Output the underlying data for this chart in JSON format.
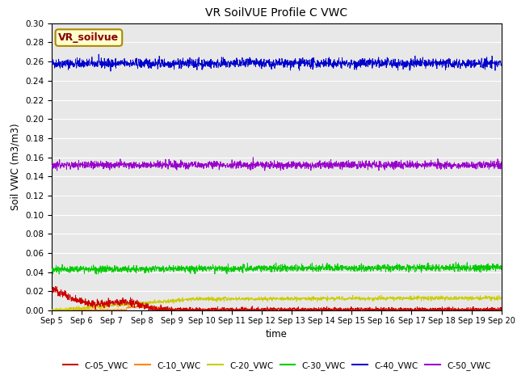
{
  "title": "VR SoilVUE Profile C VWC",
  "xlabel": "time",
  "ylabel": "Soil VWC (m3/m3)",
  "ylim": [
    0.0,
    0.3
  ],
  "yticks": [
    0.0,
    0.02,
    0.04,
    0.06,
    0.08,
    0.1,
    0.12,
    0.14,
    0.16,
    0.18,
    0.2,
    0.22,
    0.24,
    0.26,
    0.28,
    0.3
  ],
  "n_points": 2000,
  "series_colors": {
    "C-05_VWC": "#cc0000",
    "C-10_VWC": "#ff8800",
    "C-20_VWC": "#cccc00",
    "C-30_VWC": "#00cc00",
    "C-40_VWC": "#0000cc",
    "C-50_VWC": "#9900cc"
  },
  "legend_label": "VR_soilvue",
  "legend_box_color": "#ffffcc",
  "legend_box_edge": "#aa8800",
  "legend_text_color": "#880000",
  "background_color": "#e8e8e8",
  "grid_color": "#ffffff",
  "linewidth": 0.6
}
